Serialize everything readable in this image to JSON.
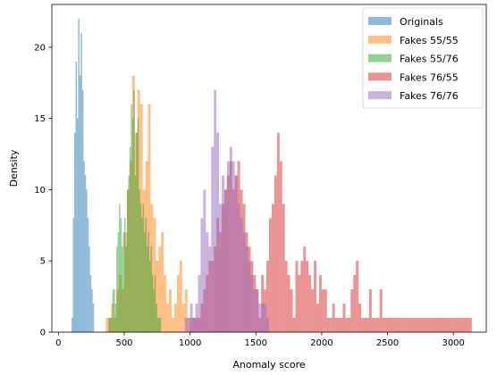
{
  "chart_data": {
    "type": "bar",
    "title": "",
    "xlabel": "Anomaly score",
    "ylabel": "Density",
    "xlim": [
      -50,
      3250
    ],
    "ylim": [
      0,
      23
    ],
    "xticks": [
      0,
      500,
      1000,
      1500,
      2000,
      2500,
      3000
    ],
    "yticks": [
      0,
      5,
      10,
      15,
      20
    ],
    "grid": false,
    "legend_position": "top-right",
    "series": [
      {
        "name": "Originals",
        "color": "#1f77b4",
        "opacity": 0.5,
        "bins": [
          [
            100,
            110,
            1
          ],
          [
            110,
            120,
            8
          ],
          [
            120,
            130,
            14
          ],
          [
            130,
            140,
            19
          ],
          [
            140,
            150,
            15
          ],
          [
            150,
            160,
            22
          ],
          [
            160,
            170,
            18
          ],
          [
            170,
            180,
            21
          ],
          [
            180,
            190,
            17
          ],
          [
            190,
            200,
            12
          ],
          [
            200,
            210,
            11
          ],
          [
            210,
            220,
            10
          ],
          [
            220,
            230,
            8
          ],
          [
            230,
            240,
            6
          ],
          [
            240,
            250,
            4
          ],
          [
            250,
            260,
            3
          ],
          [
            260,
            270,
            2
          ]
        ]
      },
      {
        "name": "Fakes 55/55",
        "color": "#ff7f0e",
        "opacity": 0.5,
        "bins": [
          [
            360,
            380,
            1
          ],
          [
            380,
            400,
            1
          ],
          [
            400,
            420,
            2
          ],
          [
            420,
            440,
            1
          ],
          [
            440,
            460,
            3
          ],
          [
            460,
            480,
            4
          ],
          [
            480,
            500,
            3
          ],
          [
            500,
            520,
            7
          ],
          [
            520,
            540,
            10
          ],
          [
            540,
            560,
            12
          ],
          [
            560,
            580,
            18
          ],
          [
            580,
            600,
            14
          ],
          [
            600,
            620,
            17
          ],
          [
            620,
            640,
            16
          ],
          [
            640,
            660,
            10
          ],
          [
            660,
            680,
            12
          ],
          [
            680,
            700,
            16
          ],
          [
            700,
            720,
            9
          ],
          [
            720,
            740,
            8
          ],
          [
            740,
            760,
            5
          ],
          [
            760,
            780,
            6
          ],
          [
            780,
            800,
            7
          ],
          [
            800,
            820,
            4
          ],
          [
            820,
            840,
            2
          ],
          [
            840,
            860,
            3
          ],
          [
            860,
            880,
            1
          ],
          [
            880,
            900,
            2
          ],
          [
            900,
            920,
            4
          ],
          [
            920,
            940,
            5
          ],
          [
            940,
            960,
            2
          ],
          [
            960,
            980,
            3
          ],
          [
            980,
            1000,
            1
          ]
        ]
      },
      {
        "name": "Fakes 55/76",
        "color": "#2ca02c",
        "opacity": 0.5,
        "bins": [
          [
            380,
            390,
            1
          ],
          [
            390,
            400,
            1
          ],
          [
            400,
            410,
            1
          ],
          [
            410,
            420,
            3
          ],
          [
            420,
            430,
            3
          ],
          [
            430,
            440,
            2
          ],
          [
            440,
            450,
            6
          ],
          [
            450,
            460,
            7
          ],
          [
            460,
            470,
            9
          ],
          [
            470,
            480,
            8
          ],
          [
            480,
            490,
            6
          ],
          [
            490,
            500,
            7
          ],
          [
            500,
            510,
            8
          ],
          [
            510,
            520,
            6
          ],
          [
            520,
            530,
            10
          ],
          [
            530,
            540,
            11
          ],
          [
            540,
            550,
            13
          ],
          [
            550,
            560,
            16
          ],
          [
            560,
            570,
            15
          ],
          [
            570,
            580,
            17
          ],
          [
            580,
            590,
            11
          ],
          [
            590,
            600,
            14
          ],
          [
            600,
            610,
            15
          ],
          [
            610,
            620,
            10
          ],
          [
            620,
            630,
            9
          ],
          [
            630,
            640,
            8
          ],
          [
            640,
            650,
            9
          ],
          [
            650,
            660,
            7
          ],
          [
            660,
            670,
            8
          ],
          [
            670,
            680,
            6
          ],
          [
            680,
            690,
            7
          ],
          [
            690,
            700,
            5
          ],
          [
            700,
            710,
            6
          ],
          [
            710,
            720,
            4
          ],
          [
            720,
            730,
            3
          ],
          [
            730,
            740,
            4
          ],
          [
            740,
            750,
            2
          ],
          [
            750,
            760,
            1
          ],
          [
            760,
            770,
            1
          ],
          [
            770,
            780,
            1
          ]
        ]
      },
      {
        "name": "Fakes 76/55",
        "color": "#d62728",
        "opacity": 0.5,
        "bins": [
          [
            1000,
            1020,
            1
          ],
          [
            1020,
            1040,
            1
          ],
          [
            1040,
            1060,
            1
          ],
          [
            1060,
            1080,
            1
          ],
          [
            1080,
            1100,
            2
          ],
          [
            1100,
            1120,
            3
          ],
          [
            1120,
            1140,
            4
          ],
          [
            1140,
            1160,
            5
          ],
          [
            1160,
            1180,
            5
          ],
          [
            1180,
            1200,
            6
          ],
          [
            1200,
            1220,
            8
          ],
          [
            1220,
            1240,
            7
          ],
          [
            1240,
            1260,
            9
          ],
          [
            1260,
            1280,
            10
          ],
          [
            1280,
            1300,
            11
          ],
          [
            1300,
            1320,
            12
          ],
          [
            1320,
            1340,
            10
          ],
          [
            1340,
            1360,
            11
          ],
          [
            1360,
            1380,
            12
          ],
          [
            1380,
            1400,
            10
          ],
          [
            1400,
            1420,
            9
          ],
          [
            1420,
            1440,
            7
          ],
          [
            1440,
            1460,
            6
          ],
          [
            1460,
            1480,
            5
          ],
          [
            1480,
            1500,
            4
          ],
          [
            1500,
            1520,
            3
          ],
          [
            1520,
            1540,
            1
          ],
          [
            1540,
            1560,
            4
          ],
          [
            1560,
            1580,
            3
          ],
          [
            1580,
            1600,
            5
          ],
          [
            1600,
            1620,
            8
          ],
          [
            1620,
            1640,
            9
          ],
          [
            1640,
            1660,
            11
          ],
          [
            1660,
            1680,
            14
          ],
          [
            1680,
            1700,
            12
          ],
          [
            1700,
            1720,
            9
          ],
          [
            1720,
            1740,
            5
          ],
          [
            1740,
            1760,
            4
          ],
          [
            1760,
            1780,
            3
          ],
          [
            1780,
            1800,
            1
          ],
          [
            1800,
            1820,
            5
          ],
          [
            1820,
            1840,
            4
          ],
          [
            1840,
            1860,
            5
          ],
          [
            1860,
            1880,
            6
          ],
          [
            1880,
            1900,
            5
          ],
          [
            1900,
            1920,
            4
          ],
          [
            1920,
            1940,
            3
          ],
          [
            1940,
            1960,
            5
          ],
          [
            1960,
            1980,
            2
          ],
          [
            1980,
            2000,
            4
          ],
          [
            2000,
            2020,
            3
          ],
          [
            2020,
            2040,
            3
          ],
          [
            2040,
            2060,
            1
          ],
          [
            2060,
            2080,
            1
          ],
          [
            2080,
            2100,
            2
          ],
          [
            2100,
            2120,
            1
          ],
          [
            2120,
            2140,
            1
          ],
          [
            2140,
            2160,
            1
          ],
          [
            2160,
            2180,
            2
          ],
          [
            2180,
            2200,
            1
          ],
          [
            2200,
            2220,
            1
          ],
          [
            2220,
            2240,
            3
          ],
          [
            2240,
            2260,
            4
          ],
          [
            2260,
            2280,
            5
          ],
          [
            2280,
            2300,
            2
          ],
          [
            2300,
            2320,
            1
          ],
          [
            2320,
            2340,
            1
          ],
          [
            2340,
            2360,
            1
          ],
          [
            2360,
            2380,
            3
          ],
          [
            2380,
            2400,
            1
          ],
          [
            2400,
            2420,
            1
          ],
          [
            2420,
            2440,
            1
          ],
          [
            2440,
            2460,
            3
          ],
          [
            2460,
            2480,
            1
          ],
          [
            2480,
            2500,
            1
          ],
          [
            2500,
            2520,
            1
          ],
          [
            2520,
            2540,
            1
          ],
          [
            2540,
            2560,
            1
          ],
          [
            2560,
            2580,
            1
          ],
          [
            2580,
            2600,
            1
          ],
          [
            2600,
            2620,
            1
          ],
          [
            2620,
            2640,
            1
          ],
          [
            2640,
            2660,
            1
          ],
          [
            2660,
            2680,
            1
          ],
          [
            2680,
            2700,
            1
          ],
          [
            2700,
            2720,
            1
          ],
          [
            2720,
            2740,
            1
          ],
          [
            2740,
            2760,
            1
          ],
          [
            2760,
            2780,
            1
          ],
          [
            2780,
            2800,
            1
          ],
          [
            2800,
            2820,
            1
          ],
          [
            2820,
            2840,
            1
          ],
          [
            2840,
            2860,
            1
          ],
          [
            2860,
            2880,
            1
          ],
          [
            2880,
            2900,
            1
          ],
          [
            2900,
            2920,
            1
          ],
          [
            2920,
            2940,
            1
          ],
          [
            2940,
            2960,
            1
          ],
          [
            2960,
            2980,
            1
          ],
          [
            2980,
            3000,
            1
          ],
          [
            3000,
            3020,
            1
          ],
          [
            3020,
            3040,
            1
          ],
          [
            3040,
            3060,
            1
          ],
          [
            3060,
            3080,
            1
          ],
          [
            3080,
            3100,
            1
          ],
          [
            3100,
            3120,
            1
          ],
          [
            3120,
            3140,
            1
          ]
        ]
      },
      {
        "name": "Fakes 76/76",
        "color": "#9467bd",
        "opacity": 0.5,
        "bins": [
          [
            960,
            980,
            1
          ],
          [
            980,
            1000,
            1
          ],
          [
            1000,
            1020,
            2
          ],
          [
            1020,
            1040,
            1
          ],
          [
            1040,
            1060,
            2
          ],
          [
            1060,
            1080,
            4
          ],
          [
            1080,
            1100,
            8
          ],
          [
            1100,
            1120,
            10
          ],
          [
            1120,
            1140,
            7
          ],
          [
            1140,
            1160,
            6
          ],
          [
            1160,
            1180,
            13
          ],
          [
            1180,
            1200,
            17
          ],
          [
            1200,
            1220,
            14
          ],
          [
            1220,
            1240,
            9
          ],
          [
            1240,
            1260,
            11
          ],
          [
            1260,
            1280,
            10
          ],
          [
            1280,
            1300,
            12
          ],
          [
            1300,
            1320,
            13
          ],
          [
            1320,
            1340,
            12
          ],
          [
            1340,
            1360,
            11
          ],
          [
            1360,
            1380,
            9
          ],
          [
            1380,
            1400,
            8
          ],
          [
            1400,
            1420,
            7
          ],
          [
            1420,
            1440,
            6
          ],
          [
            1440,
            1460,
            5
          ],
          [
            1460,
            1480,
            4
          ],
          [
            1480,
            1500,
            3
          ],
          [
            1500,
            1520,
            3
          ],
          [
            1520,
            1540,
            2
          ],
          [
            1540,
            1560,
            2
          ],
          [
            1560,
            1580,
            2
          ],
          [
            1580,
            1600,
            1
          ]
        ]
      }
    ]
  }
}
